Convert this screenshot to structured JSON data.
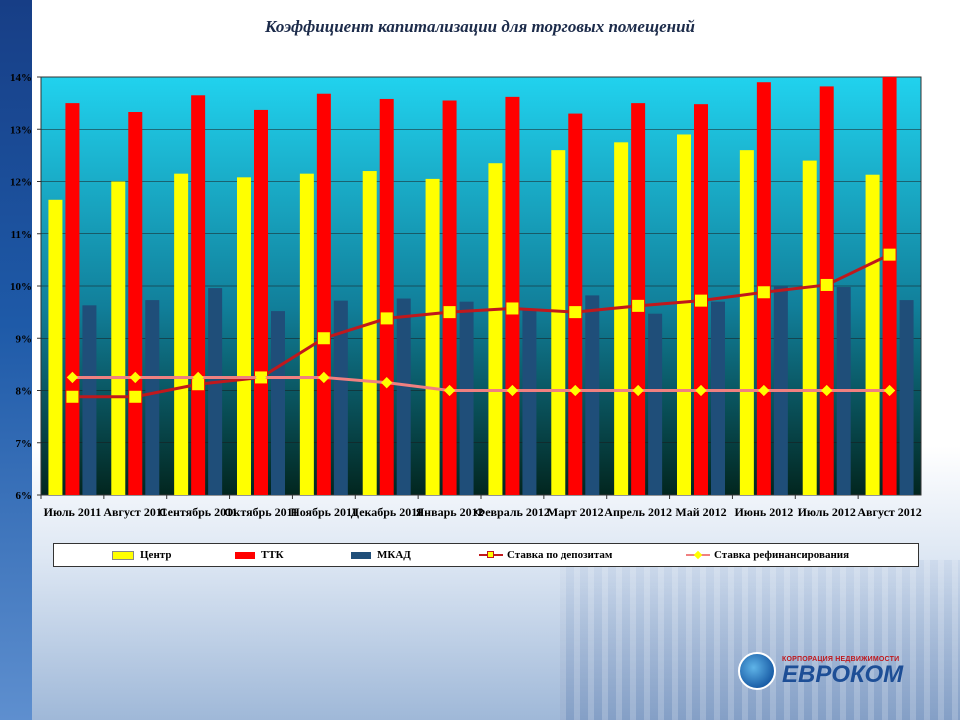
{
  "title": "Коэффициент капитализации для торговых помещений",
  "logo": {
    "subtitle": "КОРПОРАЦИЯ НЕДВИЖИМОСТИ",
    "name": "ЕВРОКОМ"
  },
  "chart_data": {
    "type": "bar",
    "title": "Коэффициент капитализации для торговых помещений",
    "categories": [
      "Июль 2011",
      "Август 2011",
      "Сентябрь 2011",
      "Октябрь 2011",
      "Ноябрь 2011",
      "Декабрь 2011",
      "Январь 2012",
      "Февраль 2012",
      "Март 2012",
      "Апрель 2012",
      "Май 2012",
      "Июнь 2012",
      "Июль 2012",
      "Август 2012"
    ],
    "ylim": [
      6,
      14
    ],
    "yticks": [
      "6%",
      "7%",
      "8%",
      "9%",
      "10%",
      "11%",
      "12%",
      "13%",
      "14%"
    ],
    "grid": true,
    "legend_position": "bottom",
    "series": [
      {
        "name": "Центр",
        "kind": "bar",
        "color": "#ffff00",
        "values": [
          11.65,
          12.0,
          12.15,
          12.08,
          12.15,
          12.2,
          12.05,
          12.35,
          12.6,
          12.75,
          12.9,
          12.6,
          12.4,
          12.13
        ]
      },
      {
        "name": "ТТК",
        "kind": "bar",
        "color": "#ff0000",
        "values": [
          13.5,
          13.33,
          13.65,
          13.37,
          13.68,
          13.58,
          13.55,
          13.62,
          13.3,
          13.5,
          13.48,
          13.9,
          13.82,
          14.0
        ]
      },
      {
        "name": "МКАД",
        "kind": "bar",
        "color": "#1f4e79",
        "values": [
          9.63,
          9.73,
          9.96,
          9.52,
          9.72,
          9.76,
          9.7,
          9.55,
          9.82,
          9.47,
          9.7,
          10.0,
          9.98,
          9.73
        ]
      },
      {
        "name": "Ставка по депозитам",
        "kind": "line",
        "color": "#c0181c",
        "marker": "square",
        "marker_color": "#ffff00",
        "values": [
          7.88,
          7.88,
          8.12,
          8.25,
          9.0,
          9.38,
          9.5,
          9.57,
          9.5,
          9.62,
          9.72,
          9.88,
          10.02,
          10.6
        ]
      },
      {
        "name": "Ставка рефинансирования",
        "kind": "line",
        "color": "#f08080",
        "marker": "diamond",
        "marker_color": "#ffff00",
        "values": [
          8.25,
          8.25,
          8.25,
          8.25,
          8.25,
          8.15,
          8.0,
          8.0,
          8.0,
          8.0,
          8.0,
          8.0,
          8.0,
          8.0
        ]
      }
    ]
  }
}
